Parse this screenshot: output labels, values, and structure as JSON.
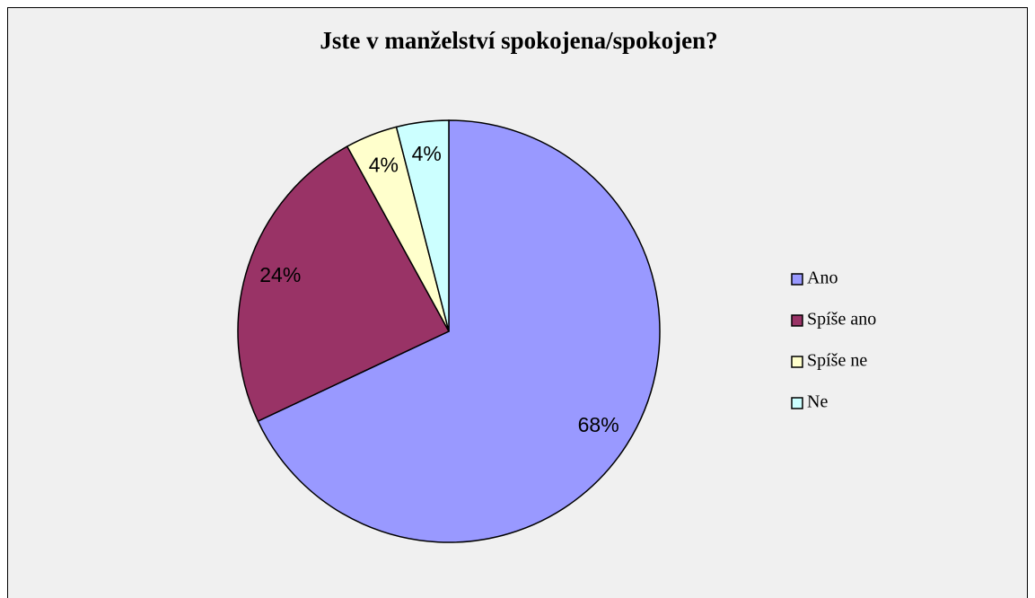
{
  "chart_data": {
    "type": "pie",
    "title": "Jste v manželství spokojena/spokojen?",
    "categories": [
      "Ano",
      "Spíše ano",
      "Spíše ne",
      "Ne"
    ],
    "values": [
      68,
      24,
      4,
      4
    ],
    "value_labels": [
      "68%",
      "24%",
      "4%",
      "4%"
    ],
    "colors": [
      "#9999ff",
      "#993366",
      "#ffffcc",
      "#ccffff"
    ],
    "legend": "right"
  }
}
